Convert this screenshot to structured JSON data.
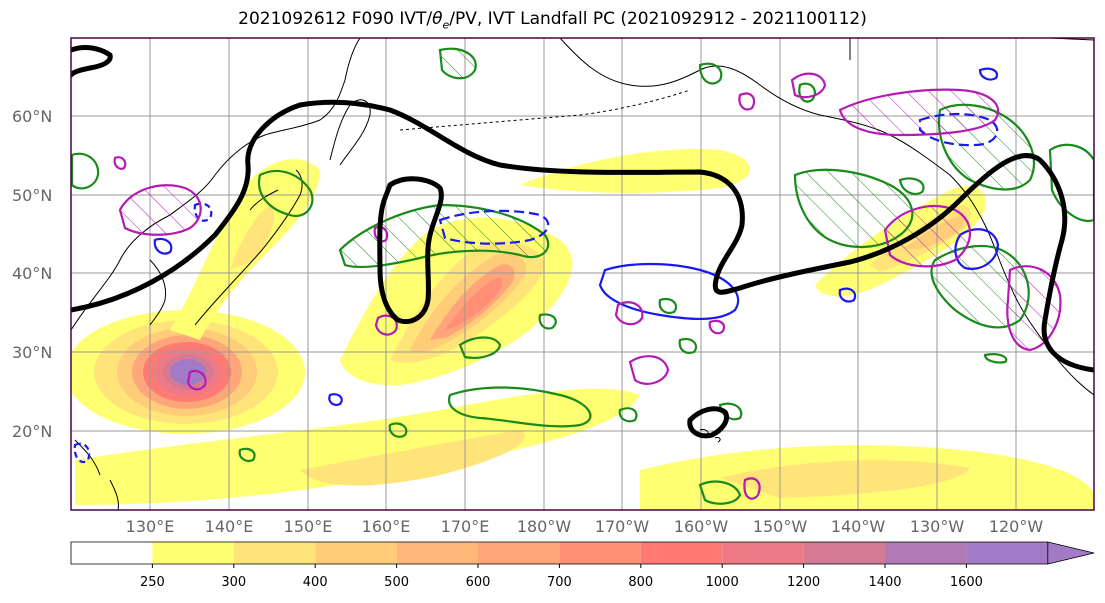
{
  "title_prefix": "2021092612 F090 IVT/",
  "title_theta": "θ",
  "title_sub": "e",
  "title_suffix": "/PV, IVT Landfall PC (2021092912 - 2021100112)",
  "lat_labels": [
    "60°N",
    "50°N",
    "40°N",
    "30°N",
    "20°N"
  ],
  "lon_labels": [
    "130°E",
    "140°E",
    "150°E",
    "160°E",
    "170°E",
    "180°W",
    "170°W",
    "160°W",
    "150°W",
    "140°W",
    "130°W",
    "120°W"
  ],
  "colorbar": {
    "levels": [
      "250",
      "300",
      "400",
      "500",
      "600",
      "700",
      "800",
      "1000",
      "1200",
      "1400",
      "1600"
    ],
    "colors": [
      "#ffffff",
      "#ffff72",
      "#ffe47a",
      "#ffcc7a",
      "#ffb87a",
      "#ffa57a",
      "#ff8f75",
      "#ff7a73",
      "#ee7a85",
      "#d57a95",
      "#b27ab5",
      "#a37ac5"
    ]
  },
  "legend_colors": {
    "coast": "#000000",
    "black_contour": "#000000",
    "green_contour": "#1a8a1a",
    "blue_contour": "#1a1aee",
    "magenta_contour": "#b51ab5"
  }
}
